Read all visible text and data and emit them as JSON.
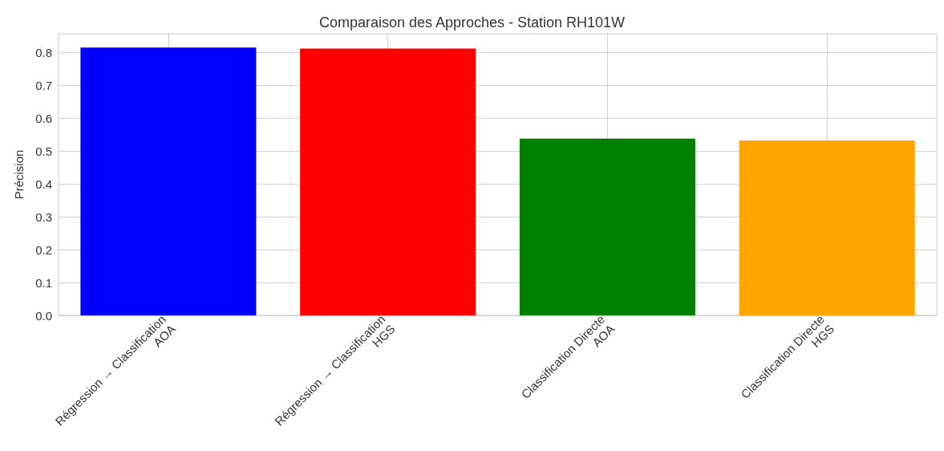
{
  "chart_data": {
    "type": "bar",
    "title": "Comparaison des Approches - Station RH101W",
    "ylabel": "Précision",
    "categories": [
      "Régression → Classification\nAOA",
      "Régression → Classification\nHGS",
      "Classification Directe\nAOA",
      "Classification Directe\nHGS"
    ],
    "values": [
      0.815,
      0.812,
      0.538,
      0.532
    ],
    "colors": [
      "#0000ff",
      "#ff0000",
      "#008000",
      "#ffa500"
    ],
    "ylim": [
      0,
      0.857
    ],
    "yticks": [
      {
        "value": 0,
        "label": "0.0"
      },
      0.1,
      0.2,
      0.3,
      0.4,
      0.5,
      0.6,
      0.7,
      0.8
    ],
    "grid": true
  }
}
